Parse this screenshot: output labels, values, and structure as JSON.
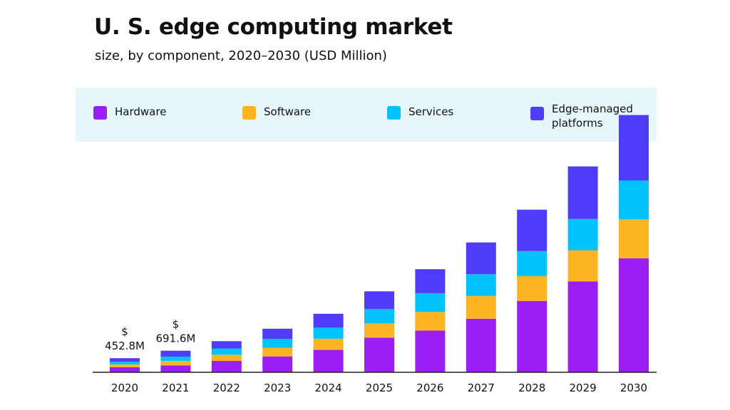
{
  "chart_data": {
    "type": "bar",
    "stacked": true,
    "title": "U. S. edge computing market",
    "subtitle": "size, by component, 2020–2030 (USD Million)",
    "categories": [
      "2020",
      "2021",
      "2022",
      "2023",
      "2024",
      "2025",
      "2026",
      "2027",
      "2028",
      "2029",
      "2030"
    ],
    "series": [
      {
        "name": "Hardware",
        "color": "#9b1ff4",
        "values": [
          160,
          220,
          365,
          510,
          720,
          1110,
          1340,
          1720,
          2290,
          2920,
          3660
        ]
      },
      {
        "name": "Software",
        "color": "#fcb421",
        "values": [
          90,
          140,
          200,
          280,
          360,
          460,
          600,
          730,
          800,
          1000,
          1250
        ]
      },
      {
        "name": "Services",
        "color": "#00c3fb",
        "values": [
          90,
          140,
          200,
          280,
          360,
          460,
          600,
          700,
          800,
          1000,
          1250
        ]
      },
      {
        "name": "Edge-managed platforms",
        "color": "#4e3cf9",
        "values": [
          112.8,
          191.6,
          235,
          330,
          440,
          570,
          770,
          1020,
          1330,
          1690,
          2100
        ]
      }
    ],
    "data_labels": [
      {
        "category": "2020",
        "currency": "$",
        "text": "452.8M"
      },
      {
        "category": "2021",
        "currency": "$",
        "text": "691.6M"
      }
    ],
    "ylim": [
      0,
      8000
    ],
    "grid": false,
    "legend_position": "top"
  }
}
